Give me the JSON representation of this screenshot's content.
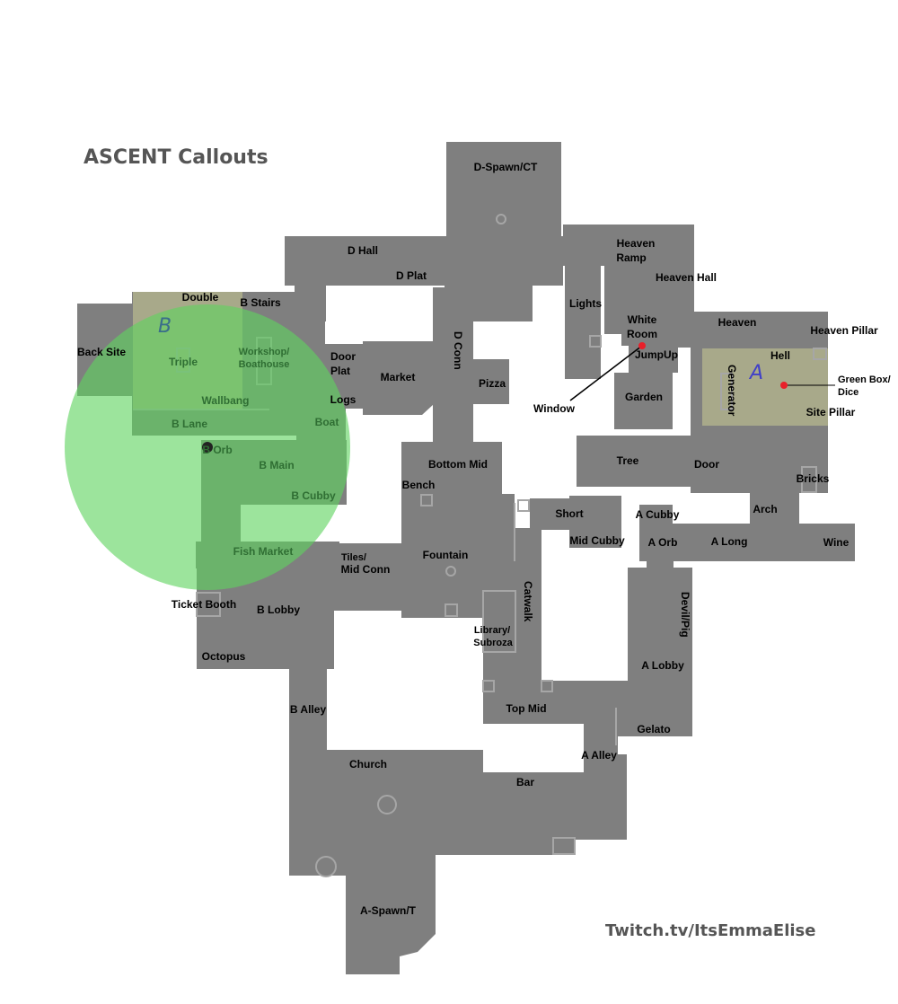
{
  "title": "ASCENT Callouts",
  "credit": "Twitch.tv/ItsEmmaElise",
  "colors": {
    "floor": "#7f7f7f",
    "site_zone": "#a8a98a",
    "highlight_circle": "#5fd45f",
    "marker": "#e8202a",
    "text": "#000000",
    "header": "#555555"
  },
  "sites": {
    "a": "A",
    "b": "B"
  },
  "callouts": {
    "d_spawn_ct": "D-Spawn/CT",
    "d_hall": "D Hall",
    "d_plat": "D Plat",
    "heaven_ramp_1": "Heaven",
    "heaven_ramp_2": "Ramp",
    "heaven_hall": "Heaven Hall",
    "lights": "Lights",
    "white_room_1": "White",
    "white_room_2": "Room",
    "heaven": "Heaven",
    "heaven_pillar": "Heaven Pillar",
    "jumpup": "JumpUp",
    "hell": "Hell",
    "generator": "Generator",
    "green_box_1": "Green Box/",
    "green_box_2": "Dice",
    "site_pillar": "Site Pillar",
    "window": "Window",
    "garden": "Garden",
    "double": "Double",
    "b_stairs": "B Stairs",
    "back_site": "Back Site",
    "triple": "Triple",
    "workshop_1": "Workshop/",
    "workshop_2": "Boathouse",
    "door_plat_1": "Door",
    "door_plat_2": "Plat",
    "market": "Market",
    "d_conn": "D Conn",
    "pizza": "Pizza",
    "logs": "Logs",
    "wallbang": "Wallbang",
    "b_lane": "B Lane",
    "boat": "Boat",
    "b_orb": "B Orb",
    "b_main": "B Main",
    "b_cubby": "B Cubby",
    "bottom_mid": "Bottom Mid",
    "bench": "Bench",
    "tree": "Tree",
    "door": "Door",
    "bricks": "Bricks",
    "arch": "Arch",
    "short": "Short",
    "a_cubby": "A Cubby",
    "mid_cubby": "Mid Cubby",
    "a_orb": "A Orb",
    "a_long": "A Long",
    "wine": "Wine",
    "fish_market": "Fish Market",
    "tiles_1": "Tiles/",
    "tiles_2": "Mid Conn",
    "fountain": "Fountain",
    "catwalk": "Catwalk",
    "devil_pig": "Devil/Pig",
    "ticket_booth": "Ticket Booth",
    "b_lobby": "B Lobby",
    "library_1": "Library/",
    "library_2": "Subroza",
    "a_lobby": "A Lobby",
    "octopus": "Octopus",
    "b_alley": "B Alley",
    "top_mid": "Top Mid",
    "gelato": "Gelato",
    "a_alley": "A Alley",
    "church": "Church",
    "bar": "Bar",
    "a_spawn_t": "A-Spawn/T"
  }
}
